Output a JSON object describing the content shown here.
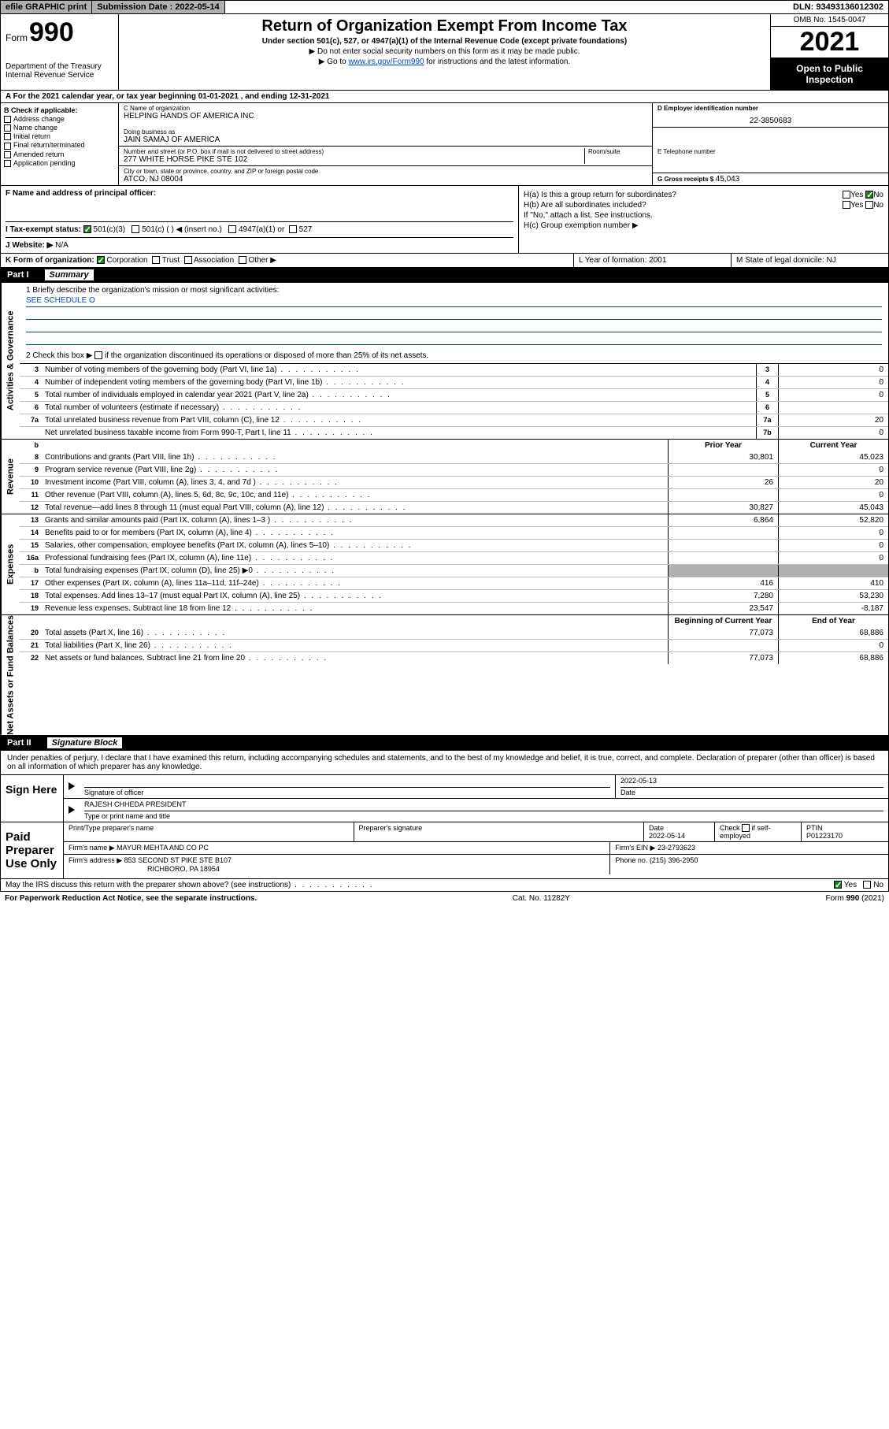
{
  "topbar": {
    "efile": "efile GRAPHIC print",
    "sub_label": "Submission Date : 2022-05-14",
    "dln": "DLN: 93493136012302"
  },
  "header": {
    "form_word": "Form",
    "form_num": "990",
    "dept": "Department of the Treasury\nInternal Revenue Service",
    "title": "Return of Organization Exempt From Income Tax",
    "sub": "Under section 501(c), 527, or 4947(a)(1) of the Internal Revenue Code (except private foundations)",
    "note1": "▶ Do not enter social security numbers on this form as it may be made public.",
    "note2_pre": "▶ Go to ",
    "note2_link": "www.irs.gov/Form990",
    "note2_post": " for instructions and the latest information.",
    "omb": "OMB No. 1545-0047",
    "year": "2021",
    "open": "Open to Public Inspection"
  },
  "row_a": "A For the 2021 calendar year, or tax year beginning 01-01-2021   , and ending 12-31-2021",
  "col_b": {
    "title": "B Check if applicable:",
    "items": [
      "Address change",
      "Name change",
      "Initial return",
      "Final return/terminated",
      "Amended return",
      "Application pending"
    ]
  },
  "col_c": {
    "name_lab": "C Name of organization",
    "name": "HELPING HANDS OF AMERICA INC",
    "dba_lab": "Doing business as",
    "dba": "JAIN SAMAJ OF AMERICA",
    "addr_lab": "Number and street (or P.O. box if mail is not delivered to street address)",
    "room_lab": "Room/suite",
    "addr": "277 WHITE HORSE PIKE STE 102",
    "city_lab": "City or town, state or province, country, and ZIP or foreign postal code",
    "city": "ATCO, NJ  08004"
  },
  "col_d": {
    "ein_lab": "D Employer identification number",
    "ein": "22-3850683",
    "tel_lab": "E Telephone number",
    "tel": "",
    "gross_lab": "G Gross receipts $",
    "gross": "45,043"
  },
  "row_f": "F  Name and address of principal officer:",
  "row_h": {
    "a": "H(a)  Is this a group return for subordinates?",
    "b": "H(b)  Are all subordinates included?",
    "b2": "If \"No,\" attach a list. See instructions.",
    "c": "H(c)  Group exemption number ▶"
  },
  "row_i": {
    "label": "I   Tax-exempt status:",
    "o1": "501(c)(3)",
    "o2": "501(c) (  ) ◀ (insert no.)",
    "o3": "4947(a)(1) or",
    "o4": "527"
  },
  "row_j": {
    "label": "J   Website: ▶",
    "val": "N/A"
  },
  "row_k": {
    "label": "K Form of organization:",
    "o1": "Corporation",
    "o2": "Trust",
    "o3": "Association",
    "o4": "Other ▶",
    "l": "L Year of formation: 2001",
    "m": "M State of legal domicile: NJ"
  },
  "part1": {
    "num": "Part I",
    "title": "Summary"
  },
  "mission": {
    "q1": "1   Briefly describe the organization's mission or most significant activities:",
    "a1": "SEE SCHEDULE O",
    "q2_pre": "2   Check this box ▶",
    "q2_post": " if the organization discontinued its operations or disposed of more than 25% of its net assets."
  },
  "sidelabels": {
    "gov": "Activities & Governance",
    "rev": "Revenue",
    "exp": "Expenses",
    "net": "Net Assets or Fund Balances"
  },
  "gov_lines": [
    {
      "n": "3",
      "d": "Number of voting members of the governing body (Part VI, line 1a)",
      "box": "3",
      "v": "0"
    },
    {
      "n": "4",
      "d": "Number of independent voting members of the governing body (Part VI, line 1b)",
      "box": "4",
      "v": "0"
    },
    {
      "n": "5",
      "d": "Total number of individuals employed in calendar year 2021 (Part V, line 2a)",
      "box": "5",
      "v": "0"
    },
    {
      "n": "6",
      "d": "Total number of volunteers (estimate if necessary)",
      "box": "6",
      "v": ""
    },
    {
      "n": "7a",
      "d": "Total unrelated business revenue from Part VIII, column (C), line 12",
      "box": "7a",
      "v": "20"
    },
    {
      "n": "",
      "d": "Net unrelated business taxable income from Form 990-T, Part I, line 11",
      "box": "7b",
      "v": "0"
    }
  ],
  "col_hdrs": {
    "b": "b",
    "prior": "Prior Year",
    "curr": "Current Year",
    "beg": "Beginning of Current Year",
    "end": "End of Year"
  },
  "rev_lines": [
    {
      "n": "8",
      "d": "Contributions and grants (Part VIII, line 1h)",
      "p": "30,801",
      "c": "45,023"
    },
    {
      "n": "9",
      "d": "Program service revenue (Part VIII, line 2g)",
      "p": "",
      "c": "0"
    },
    {
      "n": "10",
      "d": "Investment income (Part VIII, column (A), lines 3, 4, and 7d )",
      "p": "26",
      "c": "20"
    },
    {
      "n": "11",
      "d": "Other revenue (Part VIII, column (A), lines 5, 6d, 8c, 9c, 10c, and 11e)",
      "p": "",
      "c": "0"
    },
    {
      "n": "12",
      "d": "Total revenue—add lines 8 through 11 (must equal Part VIII, column (A), line 12)",
      "p": "30,827",
      "c": "45,043"
    }
  ],
  "exp_lines": [
    {
      "n": "13",
      "d": "Grants and similar amounts paid (Part IX, column (A), lines 1–3 )",
      "p": "6,864",
      "c": "52,820"
    },
    {
      "n": "14",
      "d": "Benefits paid to or for members (Part IX, column (A), line 4)",
      "p": "",
      "c": "0"
    },
    {
      "n": "15",
      "d": "Salaries, other compensation, employee benefits (Part IX, column (A), lines 5–10)",
      "p": "",
      "c": "0"
    },
    {
      "n": "16a",
      "d": "Professional fundraising fees (Part IX, column (A), line 11e)",
      "p": "",
      "c": "0"
    },
    {
      "n": "b",
      "d": "Total fundraising expenses (Part IX, column (D), line 25) ▶0",
      "p": "",
      "c": "",
      "shade": true
    },
    {
      "n": "17",
      "d": "Other expenses (Part IX, column (A), lines 11a–11d, 11f–24e)",
      "p": "416",
      "c": "410"
    },
    {
      "n": "18",
      "d": "Total expenses. Add lines 13–17 (must equal Part IX, column (A), line 25)",
      "p": "7,280",
      "c": "53,230"
    },
    {
      "n": "19",
      "d": "Revenue less expenses. Subtract line 18 from line 12",
      "p": "23,547",
      "c": "-8,187"
    }
  ],
  "net_lines": [
    {
      "n": "20",
      "d": "Total assets (Part X, line 16)",
      "p": "77,073",
      "c": "68,886"
    },
    {
      "n": "21",
      "d": "Total liabilities (Part X, line 26)",
      "p": "",
      "c": "0"
    },
    {
      "n": "22",
      "d": "Net assets or fund balances. Subtract line 21 from line 20",
      "p": "77,073",
      "c": "68,886"
    }
  ],
  "part2": {
    "num": "Part II",
    "title": "Signature Block"
  },
  "sig_intro": "Under penalties of perjury, I declare that I have examined this return, including accompanying schedules and statements, and to the best of my knowledge and belief, it is true, correct, and complete. Declaration of preparer (other than officer) is based on all information of which preparer has any knowledge.",
  "sign": {
    "left": "Sign Here",
    "sig_of": "Signature of officer",
    "date": "2022-05-13",
    "date_lab": "Date",
    "name": "RAJESH CHHEDA  PRESIDENT",
    "name_lab": "Type or print name and title"
  },
  "paid": {
    "left": "Paid Preparer Use Only",
    "c1": "Print/Type preparer's name",
    "c2": "Preparer's signature",
    "c3_lab": "Date",
    "c3": "2022-05-14",
    "c4_lab": "Check",
    "c4_post": "if self-employed",
    "c5_lab": "PTIN",
    "c5": "P01223170",
    "firm_lab": "Firm's name    ▶",
    "firm": "MAYUR MEHTA AND CO PC",
    "ein_lab": "Firm's EIN ▶",
    "ein": "23-2793623",
    "addr_lab": "Firm's address ▶",
    "addr1": "853 SECOND ST PIKE STE B107",
    "addr2": "RICHBORO, PA  18954",
    "phone_lab": "Phone no.",
    "phone": "(215) 396-2950"
  },
  "discuss": {
    "q": "May the IRS discuss this return with the preparer shown above? (see instructions)",
    "yes": "Yes",
    "no": "No"
  },
  "footer": {
    "l": "For Paperwork Reduction Act Notice, see the separate instructions.",
    "c": "Cat. No. 11282Y",
    "r": "Form 990 (2021)"
  }
}
